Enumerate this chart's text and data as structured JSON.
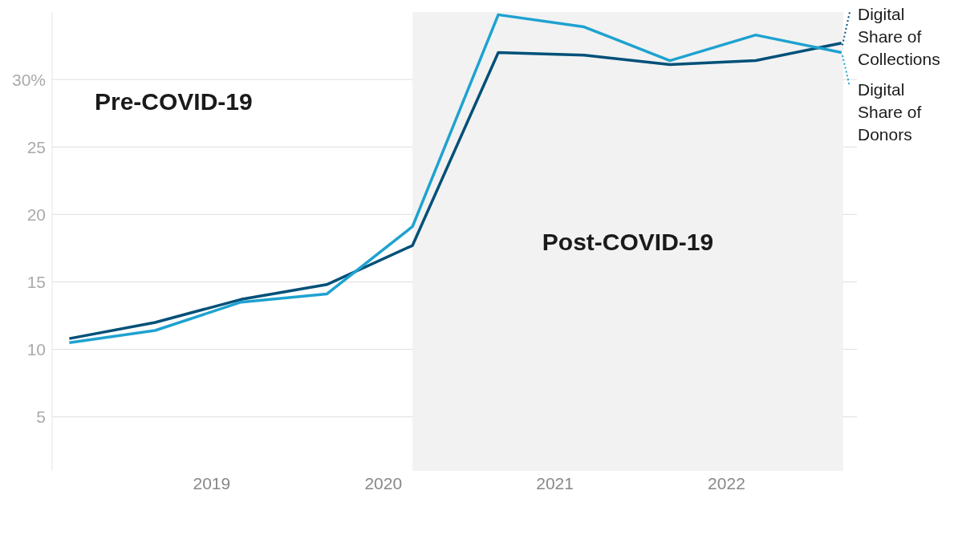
{
  "chart_data": {
    "type": "line",
    "x": [
      2018.17,
      2018.67,
      2019.17,
      2019.67,
      2020.17,
      2020.67,
      2021.17,
      2021.67,
      2022.17,
      2022.67
    ],
    "series": [
      {
        "name": "Digital Share of Collections",
        "color": "#005078",
        "values": [
          10.8,
          12.0,
          13.7,
          14.8,
          17.7,
          32.0,
          31.8,
          31.1,
          31.4,
          32.7
        ]
      },
      {
        "name": "Digital Share of Donors",
        "color": "#1ea2d0",
        "values": [
          10.5,
          11.4,
          13.5,
          14.1,
          19.1,
          34.8,
          33.9,
          31.4,
          33.3,
          32.0
        ]
      }
    ],
    "xlim": [
      2018.07,
      2022.76
    ],
    "xticks": [
      2019,
      2020,
      2021,
      2022
    ],
    "ylim": [
      1,
      35
    ],
    "yticks": [
      5,
      10,
      15,
      20,
      25,
      {
        "value": 30,
        "label": "30%"
      }
    ],
    "grid": "y",
    "legend": "right",
    "marker": "none",
    "line_style": "solid",
    "bands": [
      {
        "axis": "x",
        "from": 2020.17,
        "to": 2022.68,
        "label": "Post-COVID-19",
        "color": "#f2f2f2"
      }
    ],
    "annotations": [
      "Pre-COVID-19"
    ]
  }
}
